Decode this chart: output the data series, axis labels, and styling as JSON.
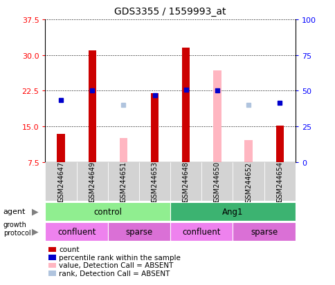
{
  "title": "GDS3355 / 1559993_at",
  "samples": [
    "GSM244647",
    "GSM244649",
    "GSM244651",
    "GSM244653",
    "GSM244648",
    "GSM244650",
    "GSM244652",
    "GSM244654"
  ],
  "count_values": [
    13.5,
    31.0,
    null,
    22.0,
    31.5,
    null,
    null,
    15.2
  ],
  "rank_values": [
    20.5,
    22.5,
    null,
    21.5,
    22.7,
    22.5,
    null,
    20.0
  ],
  "count_absent_values": [
    null,
    null,
    12.5,
    null,
    null,
    26.8,
    12.2,
    null
  ],
  "rank_absent_values": [
    null,
    null,
    19.5,
    null,
    null,
    null,
    19.5,
    null
  ],
  "ylim": [
    7.5,
    37.5
  ],
  "yticks_left": [
    7.5,
    15.0,
    22.5,
    30.0,
    37.5
  ],
  "yticks_right": [
    0,
    25,
    50,
    75,
    100
  ],
  "agent_groups": [
    {
      "label": "control",
      "color": "#90EE90",
      "start": 0,
      "end": 4
    },
    {
      "label": "Ang1",
      "color": "#3CB371",
      "start": 4,
      "end": 8
    }
  ],
  "growth_groups": [
    {
      "label": "confluent",
      "color": "#EE82EE",
      "start": 0,
      "end": 2
    },
    {
      "label": "sparse",
      "color": "#DA70D6",
      "start": 2,
      "end": 4
    },
    {
      "label": "confluent",
      "color": "#EE82EE",
      "start": 4,
      "end": 6
    },
    {
      "label": "sparse",
      "color": "#DA70D6",
      "start": 6,
      "end": 8
    }
  ],
  "count_color": "#CC0000",
  "rank_color": "#0000CC",
  "count_absent_color": "#FFB6C1",
  "rank_absent_color": "#B0C4DE",
  "legend_items": [
    {
      "label": "count",
      "color": "#CC0000"
    },
    {
      "label": "percentile rank within the sample",
      "color": "#0000CC"
    },
    {
      "label": "value, Detection Call = ABSENT",
      "color": "#FFB6C1"
    },
    {
      "label": "rank, Detection Call = ABSENT",
      "color": "#B0C4DE"
    }
  ],
  "bar_bottom": 7.5,
  "bar_width": 0.25
}
